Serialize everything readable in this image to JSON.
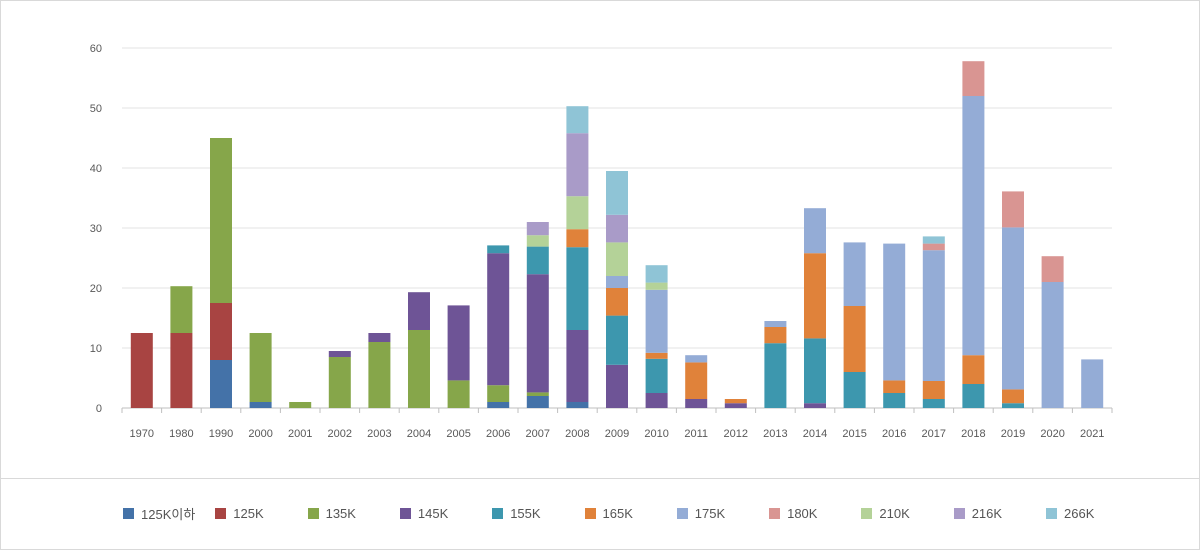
{
  "chart_data": {
    "type": "bar",
    "stacked": true,
    "categories": [
      "1970",
      "1980",
      "1990",
      "2000",
      "2001",
      "2002",
      "2003",
      "2004",
      "2005",
      "2006",
      "2007",
      "2008",
      "2009",
      "2010",
      "2011",
      "2012",
      "2013",
      "2014",
      "2015",
      "2016",
      "2017",
      "2018",
      "2019",
      "2020",
      "2021"
    ],
    "ylim": [
      0,
      60
    ],
    "yticks": [
      0,
      10,
      20,
      30,
      40,
      50,
      60
    ],
    "grid": true,
    "legend_position": "bottom",
    "series": [
      {
        "name": "125K이하",
        "color": "#4472a8",
        "values": [
          0,
          0,
          8,
          1,
          0,
          0,
          0,
          0,
          0,
          1,
          2,
          1,
          0,
          0,
          0,
          0,
          0,
          0,
          0,
          0,
          0,
          0,
          0,
          0,
          0
        ]
      },
      {
        "name": "125K",
        "color": "#a84442",
        "values": [
          12.5,
          12.5,
          9.5,
          0,
          0,
          0,
          0,
          0,
          0,
          0,
          0,
          0,
          0,
          0,
          0,
          0,
          0,
          0,
          0,
          0,
          0,
          0,
          0,
          0,
          0
        ]
      },
      {
        "name": "135K",
        "color": "#86a64a",
        "values": [
          0,
          7.8,
          27.5,
          11.5,
          1,
          8.5,
          11,
          13,
          4.6,
          2.8,
          0.6,
          0,
          0,
          0,
          0,
          0,
          0,
          0,
          0,
          0,
          0,
          0,
          0,
          0,
          0
        ]
      },
      {
        "name": "145K",
        "color": "#6e5496",
        "values": [
          0,
          0,
          0,
          0,
          0,
          1,
          1.5,
          6.3,
          12.5,
          22,
          19.7,
          12,
          7.2,
          2.5,
          1.5,
          0.8,
          0,
          0.8,
          0,
          0,
          0,
          0,
          0,
          0,
          0
        ]
      },
      {
        "name": "155K",
        "color": "#3d97ae",
        "values": [
          0,
          0,
          0,
          0,
          0,
          0,
          0,
          0,
          0,
          1.3,
          4.6,
          13.8,
          8.2,
          5.7,
          0,
          0,
          10.8,
          10.8,
          6,
          2.5,
          1.5,
          4,
          0.8,
          0,
          0
        ]
      },
      {
        "name": "165K",
        "color": "#e0823a",
        "values": [
          0,
          0,
          0,
          0,
          0,
          0,
          0,
          0,
          0,
          0,
          0,
          3,
          4.6,
          1,
          6.1,
          0.7,
          2.7,
          14.2,
          11,
          2.1,
          3,
          4.8,
          2.3,
          0,
          0
        ]
      },
      {
        "name": "175K",
        "color": "#94acd6",
        "values": [
          0,
          0,
          0,
          0,
          0,
          0,
          0,
          0,
          0,
          0,
          0,
          0,
          2,
          10.5,
          1.2,
          0,
          1,
          7.5,
          10.6,
          22.8,
          21.8,
          43.2,
          27,
          21,
          8.1
        ]
      },
      {
        "name": "180K",
        "color": "#d99592",
        "values": [
          0,
          0,
          0,
          0,
          0,
          0,
          0,
          0,
          0,
          0,
          0,
          0,
          0,
          0,
          0,
          0,
          0,
          0,
          0,
          0,
          1.1,
          5.8,
          6,
          4.3,
          0
        ]
      },
      {
        "name": "210K",
        "color": "#b4d298",
        "values": [
          0,
          0,
          0,
          0,
          0,
          0,
          0,
          0,
          0,
          0,
          1.9,
          5.5,
          5.6,
          1.2,
          0,
          0,
          0,
          0,
          0,
          0,
          0,
          0,
          0,
          0,
          0
        ]
      },
      {
        "name": "216K",
        "color": "#a99bc8",
        "values": [
          0,
          0,
          0,
          0,
          0,
          0,
          0,
          0,
          0,
          0,
          2.2,
          10.5,
          4.6,
          0,
          0,
          0,
          0,
          0,
          0,
          0,
          0,
          0,
          0,
          0,
          0
        ]
      },
      {
        "name": "266K",
        "color": "#8fc4d6",
        "values": [
          0,
          0,
          0,
          0,
          0,
          0,
          0,
          0,
          0,
          0,
          0,
          4.5,
          7.3,
          2.9,
          0,
          0,
          0,
          0,
          0,
          0,
          1.2,
          0,
          0,
          0,
          0
        ]
      }
    ]
  }
}
